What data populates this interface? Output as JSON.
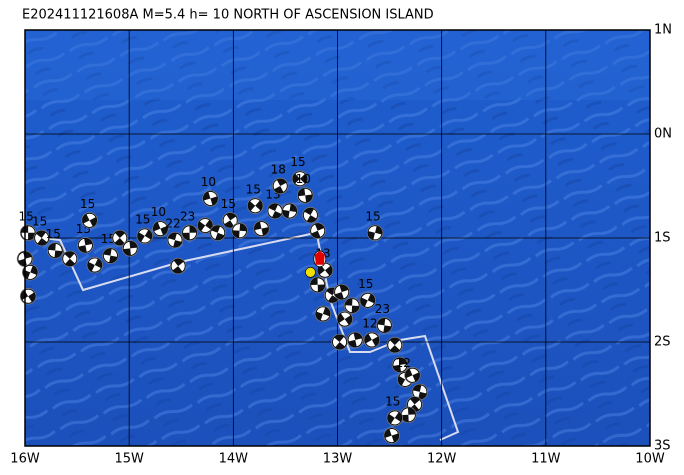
{
  "chart_data": {
    "type": "map",
    "title": "E202411121608A M=5.4 h= 10 NORTH OF ASCENSION ISLAND",
    "xlim": [
      -16,
      -10
    ],
    "ylim": [
      -3,
      1
    ],
    "xticks": [
      {
        "value": -16,
        "label": "16W"
      },
      {
        "value": -15,
        "label": "15W"
      },
      {
        "value": -14,
        "label": "14W"
      },
      {
        "value": -13,
        "label": "13W"
      },
      {
        "value": -12,
        "label": "12W"
      },
      {
        "value": -11,
        "label": "11W"
      },
      {
        "value": -10,
        "label": "10W"
      }
    ],
    "yticks": [
      {
        "value": 1,
        "label": "1N"
      },
      {
        "value": 0,
        "label": "0N"
      },
      {
        "value": -1,
        "label": "1S"
      },
      {
        "value": -2,
        "label": "2S"
      },
      {
        "value": -3,
        "label": "3S"
      }
    ],
    "grid": true,
    "epicenter": {
      "lon": -13.17,
      "lat": -1.2,
      "color": "#e00000"
    },
    "marker": {
      "lon": -13.26,
      "lat": -1.33,
      "color": "#f0e000"
    },
    "events": [
      {
        "lon": -15.97,
        "lat": -0.95,
        "depth": 15
      },
      {
        "lon": -15.84,
        "lat": -1.0,
        "depth": 15
      },
      {
        "lon": -16.0,
        "lat": -1.2
      },
      {
        "lon": -15.95,
        "lat": -1.33
      },
      {
        "lon": -15.97,
        "lat": -1.56
      },
      {
        "lon": -15.71,
        "lat": -1.12,
        "depth": 15
      },
      {
        "lon": -15.57,
        "lat": -1.2
      },
      {
        "lon": -15.42,
        "lat": -1.07,
        "depth": 15
      },
      {
        "lon": -15.33,
        "lat": -1.26
      },
      {
        "lon": -15.38,
        "lat": -0.83,
        "depth": 15
      },
      {
        "lon": -15.18,
        "lat": -1.17,
        "depth": 15
      },
      {
        "lon": -15.09,
        "lat": -1.0
      },
      {
        "lon": -14.99,
        "lat": -1.1
      },
      {
        "lon": -14.85,
        "lat": -0.98,
        "depth": 15
      },
      {
        "lon": -14.7,
        "lat": -0.91,
        "depth": 10
      },
      {
        "lon": -14.56,
        "lat": -1.02,
        "depth": 22
      },
      {
        "lon": -14.53,
        "lat": -1.27
      },
      {
        "lon": -14.42,
        "lat": -0.95,
        "depth": 23
      },
      {
        "lon": -14.27,
        "lat": -0.88
      },
      {
        "lon": -14.22,
        "lat": -0.62,
        "depth": 10
      },
      {
        "lon": -14.15,
        "lat": -0.95
      },
      {
        "lon": -14.03,
        "lat": -0.83,
        "depth": 15
      },
      {
        "lon": -13.94,
        "lat": -0.93
      },
      {
        "lon": -13.79,
        "lat": -0.69,
        "depth": 15
      },
      {
        "lon": -13.73,
        "lat": -0.91
      },
      {
        "lon": -13.6,
        "lat": -0.74,
        "depth": 13
      },
      {
        "lon": -13.55,
        "lat": -0.5,
        "depth": 18
      },
      {
        "lon": -13.46,
        "lat": -0.74
      },
      {
        "lon": -13.36,
        "lat": -0.43,
        "depth": 15
      },
      {
        "lon": -13.31,
        "lat": -0.59,
        "depth": 10
      },
      {
        "lon": -13.26,
        "lat": -0.78
      },
      {
        "lon": -13.19,
        "lat": -0.93
      },
      {
        "lon": -12.64,
        "lat": -0.95,
        "depth": 15
      },
      {
        "lon": -13.12,
        "lat": -1.31,
        "depth": 13
      },
      {
        "lon": -13.19,
        "lat": -1.45
      },
      {
        "lon": -13.05,
        "lat": -1.55
      },
      {
        "lon": -12.96,
        "lat": -1.52
      },
      {
        "lon": -13.14,
        "lat": -1.73
      },
      {
        "lon": -12.93,
        "lat": -1.78
      },
      {
        "lon": -12.86,
        "lat": -1.65
      },
      {
        "lon": -12.98,
        "lat": -2.0
      },
      {
        "lon": -12.83,
        "lat": -1.98
      },
      {
        "lon": -12.71,
        "lat": -1.6,
        "depth": 15
      },
      {
        "lon": -12.67,
        "lat": -1.98,
        "depth": 12
      },
      {
        "lon": -12.55,
        "lat": -1.84,
        "depth": 23
      },
      {
        "lon": -12.45,
        "lat": -2.03
      },
      {
        "lon": -12.4,
        "lat": -2.22
      },
      {
        "lon": -12.35,
        "lat": -2.36,
        "depth": 12
      },
      {
        "lon": -12.28,
        "lat": -2.32
      },
      {
        "lon": -12.21,
        "lat": -2.48
      },
      {
        "lon": -12.26,
        "lat": -2.6
      },
      {
        "lon": -12.32,
        "lat": -2.7
      },
      {
        "lon": -12.45,
        "lat": -2.73,
        "depth": 15
      },
      {
        "lon": -12.48,
        "lat": -2.9
      }
    ]
  }
}
